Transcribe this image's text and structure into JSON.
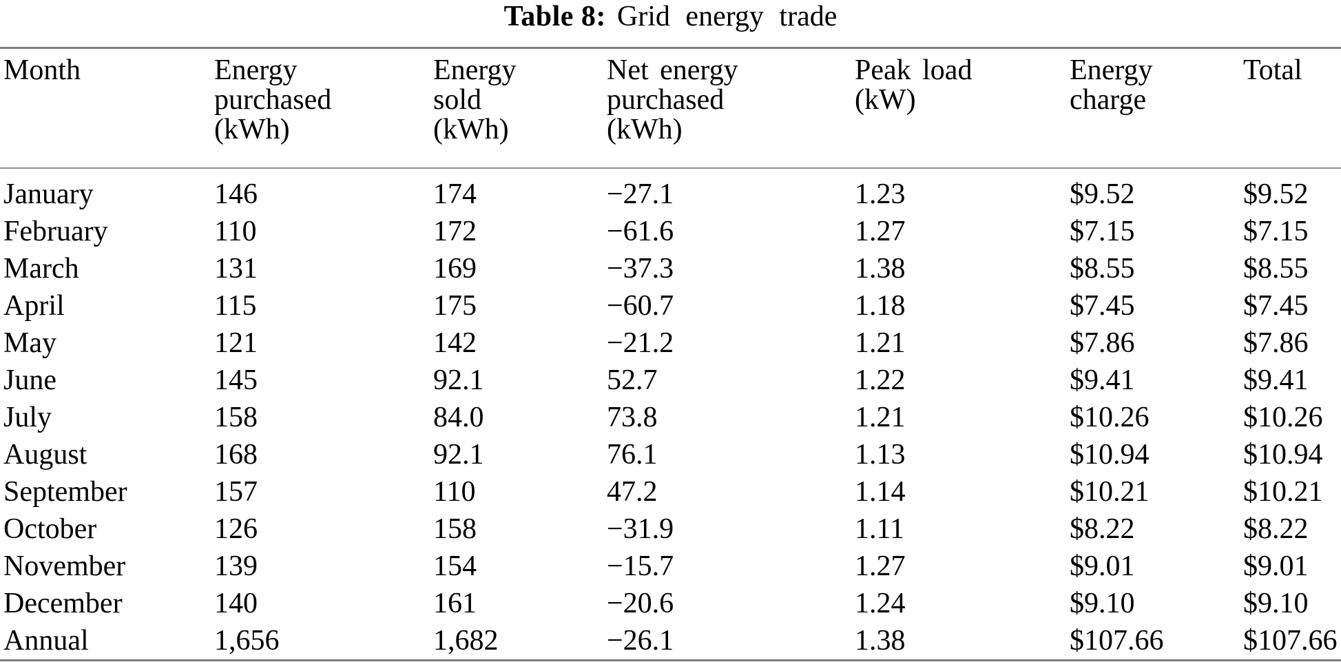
{
  "title": {
    "label": "Table 8:",
    "text": "Grid energy trade"
  },
  "table": {
    "columns": [
      {
        "label": "Month"
      },
      {
        "label": "Energy\npurchased\n(kWh)"
      },
      {
        "label": "Energy\nsold\n(kWh)"
      },
      {
        "label": "Net energy\npurchased\n(kWh)"
      },
      {
        "label": "Peak load\n(kW)"
      },
      {
        "label": "Energy\ncharge"
      },
      {
        "label": "Total"
      }
    ],
    "rows": [
      [
        "January",
        "146",
        "174",
        "−27.1",
        "1.23",
        "$9.52",
        "$9.52"
      ],
      [
        "February",
        "110",
        "172",
        "−61.6",
        "1.27",
        "$7.15",
        "$7.15"
      ],
      [
        "March",
        "131",
        "169",
        "−37.3",
        "1.38",
        "$8.55",
        "$8.55"
      ],
      [
        "April",
        "115",
        "175",
        "−60.7",
        "1.18",
        "$7.45",
        "$7.45"
      ],
      [
        "May",
        "121",
        "142",
        "−21.2",
        "1.21",
        "$7.86",
        "$7.86"
      ],
      [
        "June",
        "145",
        "92.1",
        "52.7",
        "1.22",
        "$9.41",
        "$9.41"
      ],
      [
        "July",
        "158",
        "84.0",
        "73.8",
        "1.21",
        "$10.26",
        "$10.26"
      ],
      [
        "August",
        "168",
        "92.1",
        "76.1",
        "1.13",
        "$10.94",
        "$10.94"
      ],
      [
        "September",
        "157",
        "110",
        "47.2",
        "1.14",
        "$10.21",
        "$10.21"
      ],
      [
        "October",
        "126",
        "158",
        "−31.9",
        "1.11",
        "$8.22",
        "$8.22"
      ],
      [
        "November",
        "139",
        "154",
        "−15.7",
        "1.27",
        "$9.01",
        "$9.01"
      ],
      [
        "December",
        "140",
        "161",
        "−20.6",
        "1.24",
        "$9.10",
        "$9.10"
      ],
      [
        "Annual",
        "1,656",
        "1,682",
        "−26.1",
        "1.38",
        "$107.66",
        "$107.66"
      ]
    ],
    "text_color": "#000000",
    "rule_color": "#7d7d7d",
    "background_color": "#ffffff"
  }
}
